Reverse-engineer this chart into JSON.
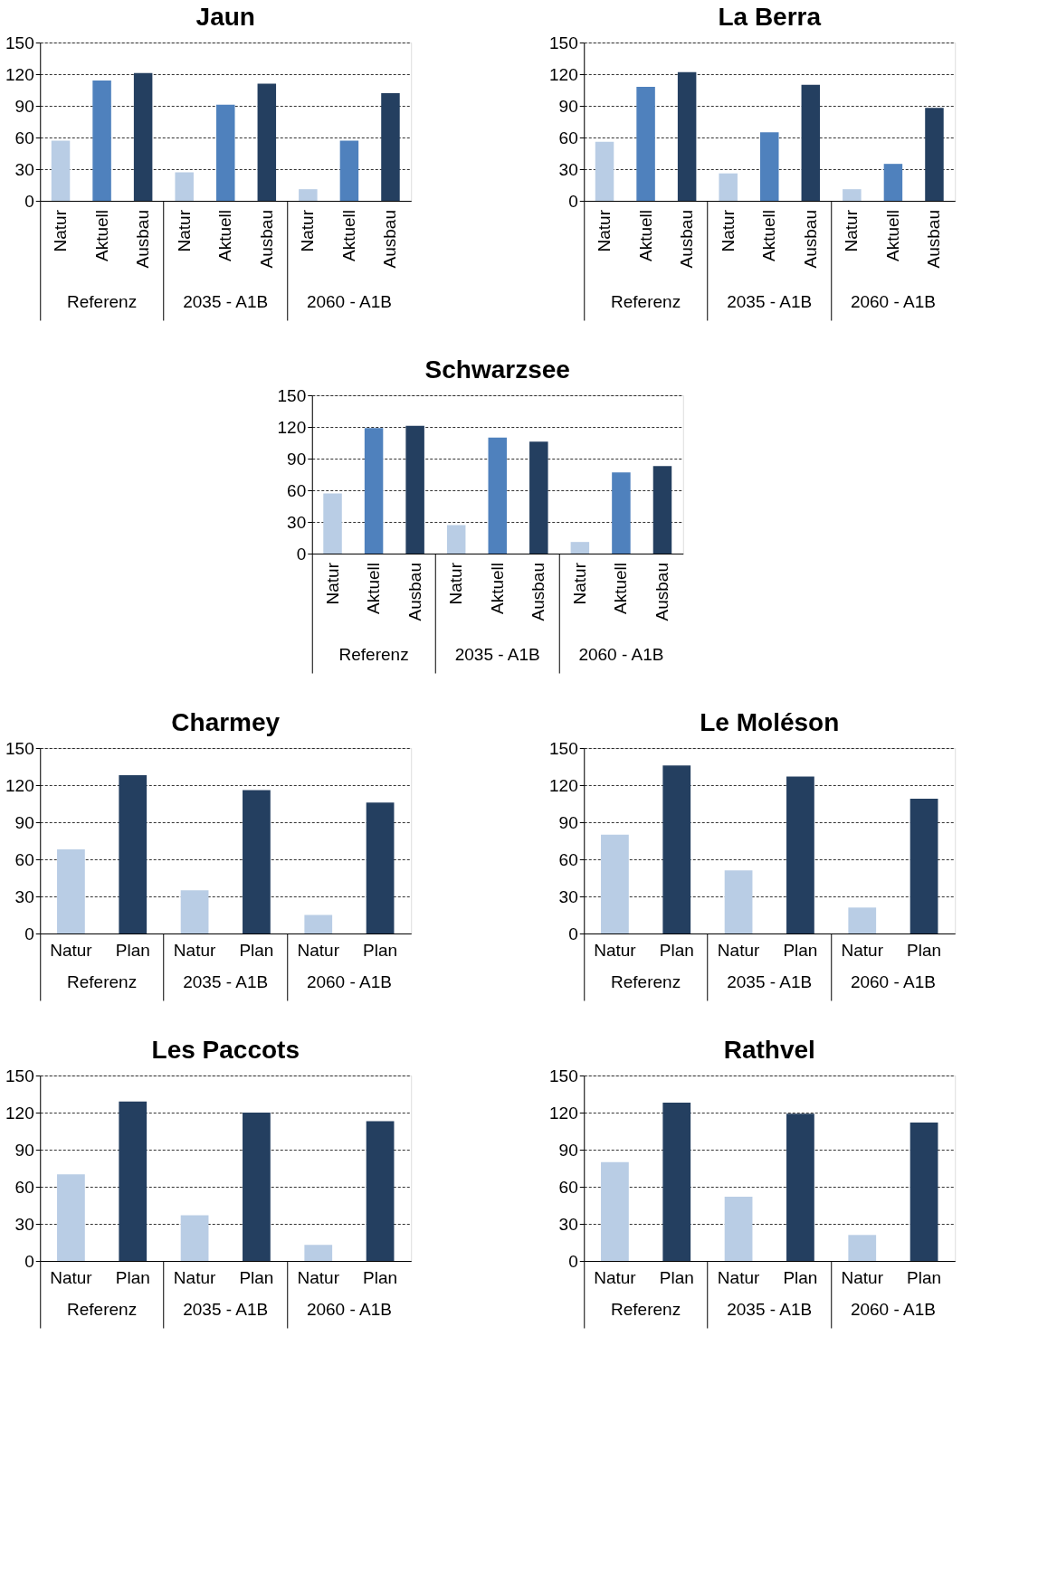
{
  "chart_data": [
    {
      "type": "bar",
      "title": "Jaun",
      "categories": [
        "Referenz",
        "2035 - A1B",
        "2060 - A1B"
      ],
      "series": [
        {
          "name": "Natur",
          "color": "#b9cde5",
          "values": [
            57,
            27,
            11
          ]
        },
        {
          "name": "Aktuell",
          "color": "#4f81bd",
          "values": [
            114,
            91,
            57
          ]
        },
        {
          "name": "Ausbau",
          "color": "#243f60",
          "values": [
            121,
            111,
            102
          ]
        }
      ],
      "ylim": [
        0,
        150
      ],
      "yticks": [
        0,
        30,
        60,
        90,
        120,
        150
      ],
      "grid": "y"
    },
    {
      "type": "bar",
      "title": "La Berra",
      "categories": [
        "Referenz",
        "2035 - A1B",
        "2060 - A1B"
      ],
      "series": [
        {
          "name": "Natur",
          "color": "#b9cde5",
          "values": [
            56,
            26,
            11
          ]
        },
        {
          "name": "Aktuell",
          "color": "#4f81bd",
          "values": [
            108,
            65,
            35
          ]
        },
        {
          "name": "Ausbau",
          "color": "#243f60",
          "values": [
            122,
            110,
            88
          ]
        }
      ],
      "ylim": [
        0,
        150
      ],
      "yticks": [
        0,
        30,
        60,
        90,
        120,
        150
      ],
      "grid": "y"
    },
    {
      "type": "bar",
      "title": "Schwarzsee",
      "categories": [
        "Referenz",
        "2035 - A1B",
        "2060 - A1B"
      ],
      "series": [
        {
          "name": "Natur",
          "color": "#b9cde5",
          "values": [
            57,
            27,
            11
          ]
        },
        {
          "name": "Aktuell",
          "color": "#4f81bd",
          "values": [
            119,
            110,
            77
          ]
        },
        {
          "name": "Ausbau",
          "color": "#243f60",
          "values": [
            121,
            106,
            83
          ]
        }
      ],
      "ylim": [
        0,
        150
      ],
      "yticks": [
        0,
        30,
        60,
        90,
        120,
        150
      ],
      "grid": "y"
    },
    {
      "type": "bar",
      "title": "Charmey",
      "categories": [
        "Referenz",
        "2035 - A1B",
        "2060 - A1B"
      ],
      "series": [
        {
          "name": "Natur",
          "color": "#b9cde5",
          "values": [
            68,
            35,
            15
          ]
        },
        {
          "name": "Plan",
          "color": "#243f60",
          "values": [
            128,
            116,
            106
          ]
        }
      ],
      "ylim": [
        0,
        150
      ],
      "yticks": [
        0,
        30,
        60,
        90,
        120,
        150
      ],
      "grid": "y"
    },
    {
      "type": "bar",
      "title": "Le Moléson",
      "categories": [
        "Referenz",
        "2035 - A1B",
        "2060 - A1B"
      ],
      "series": [
        {
          "name": "Natur",
          "color": "#b9cde5",
          "values": [
            80,
            51,
            21
          ]
        },
        {
          "name": "Plan",
          "color": "#243f60",
          "values": [
            136,
            127,
            109
          ]
        }
      ],
      "ylim": [
        0,
        150
      ],
      "yticks": [
        0,
        30,
        60,
        90,
        120,
        150
      ],
      "grid": "y"
    },
    {
      "type": "bar",
      "title": "Les Paccots",
      "categories": [
        "Referenz",
        "2035 - A1B",
        "2060 - A1B"
      ],
      "series": [
        {
          "name": "Natur",
          "color": "#b9cde5",
          "values": [
            70,
            37,
            13
          ]
        },
        {
          "name": "Plan",
          "color": "#243f60",
          "values": [
            129,
            120,
            113
          ]
        }
      ],
      "ylim": [
        0,
        150
      ],
      "yticks": [
        0,
        30,
        60,
        90,
        120,
        150
      ],
      "grid": "y"
    },
    {
      "type": "bar",
      "title": "Rathvel",
      "categories": [
        "Referenz",
        "2035 - A1B",
        "2060 - A1B"
      ],
      "series": [
        {
          "name": "Natur",
          "color": "#b9cde5",
          "values": [
            80,
            52,
            21
          ]
        },
        {
          "name": "Plan",
          "color": "#243f60",
          "values": [
            128,
            119,
            112
          ]
        }
      ],
      "ylim": [
        0,
        150
      ],
      "yticks": [
        0,
        30,
        60,
        90,
        120,
        150
      ],
      "grid": "y"
    }
  ]
}
